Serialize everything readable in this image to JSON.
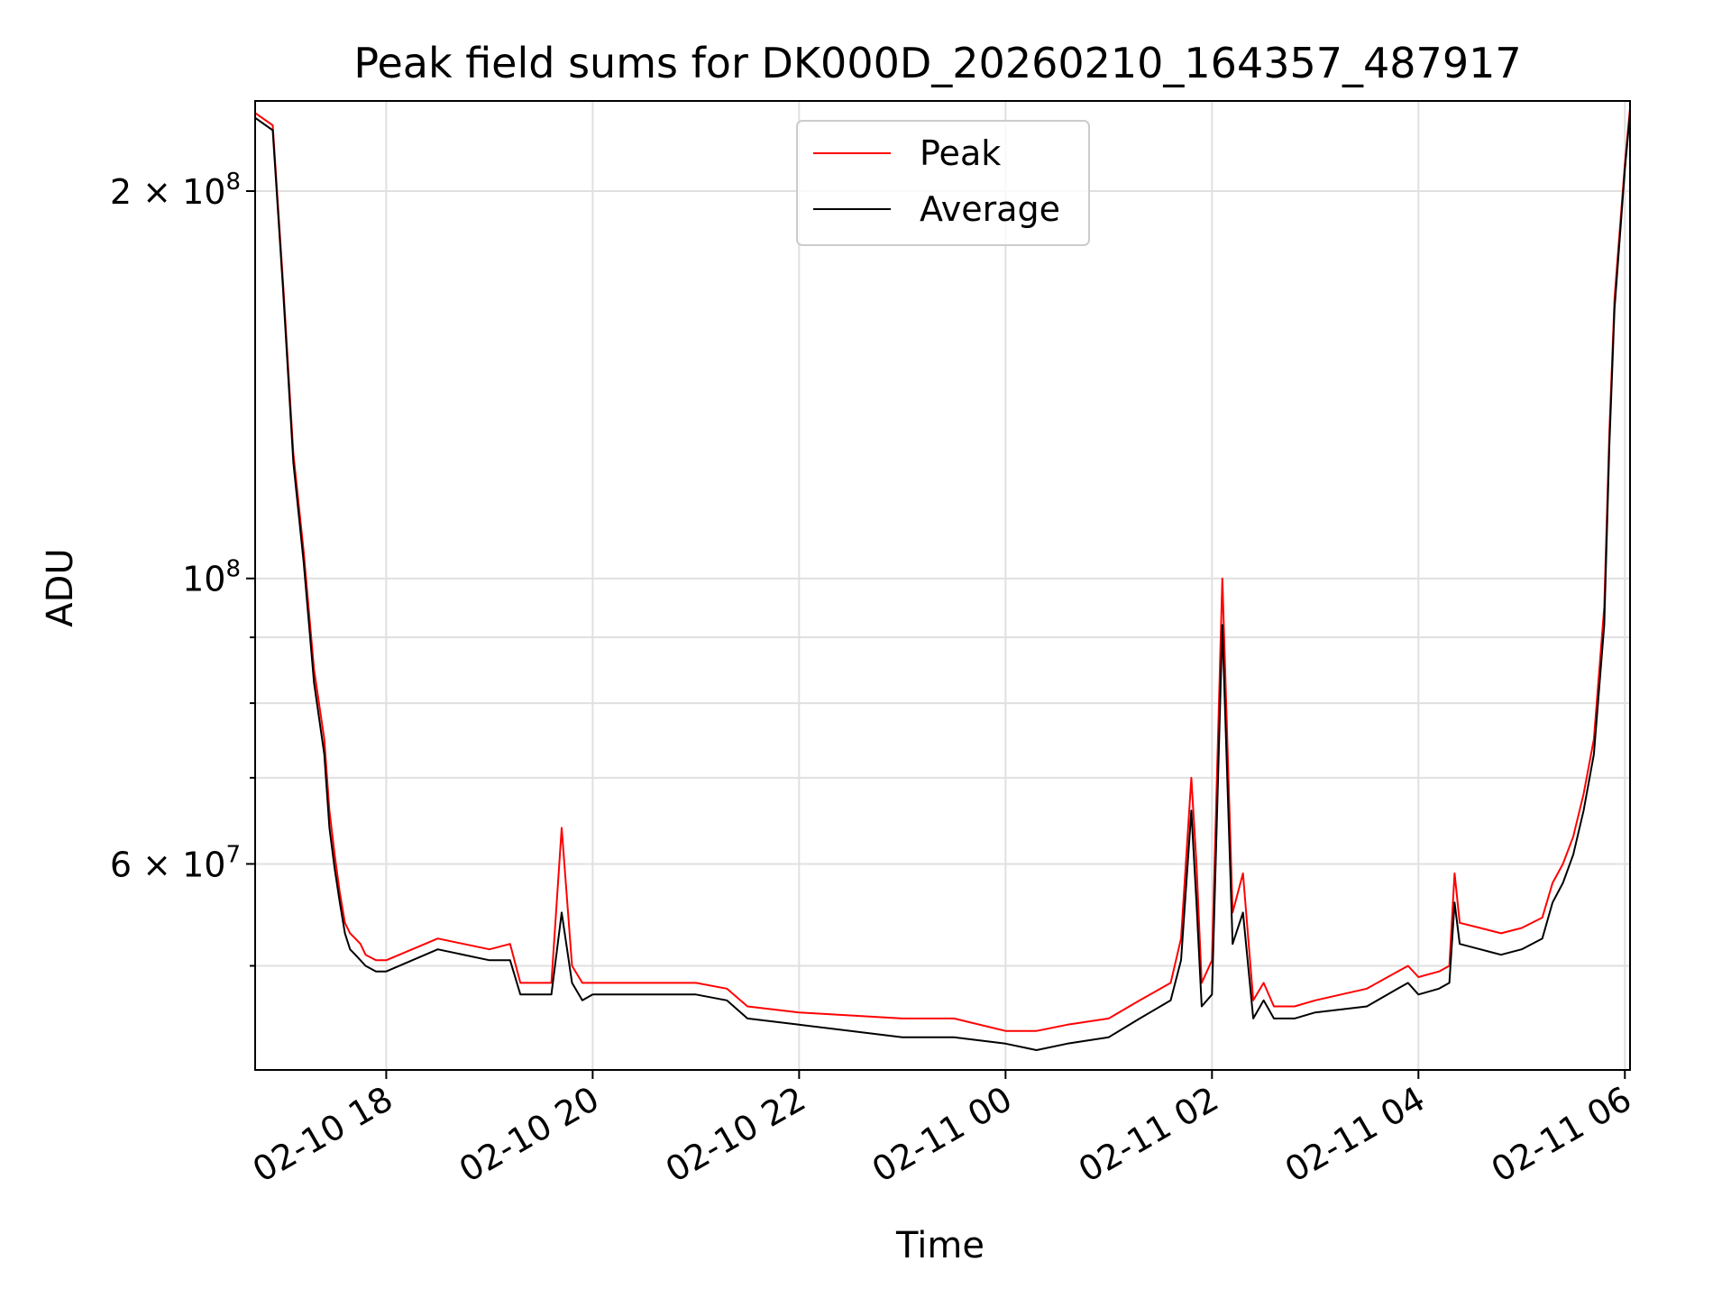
{
  "chart_data": {
    "type": "line",
    "title": "Peak field sums for DK000D_20260210_164357_487917",
    "xlabel": "Time",
    "ylabel": "ADU",
    "yscale": "log",
    "grid": true,
    "legend_position": "top-center",
    "xlim_hours": [
      16.73,
      30.05
    ],
    "ylim": [
      41500000,
      235000000
    ],
    "x_unit_note": "hours since 2026-02-10 00:00",
    "x_ticks": [
      {
        "value": 18,
        "label": "02-10 18"
      },
      {
        "value": 20,
        "label": "02-10 20"
      },
      {
        "value": 22,
        "label": "02-10 22"
      },
      {
        "value": 24,
        "label": "02-11 00"
      },
      {
        "value": 26,
        "label": "02-11 02"
      },
      {
        "value": 28,
        "label": "02-11 04"
      },
      {
        "value": 30,
        "label": "02-11 06"
      }
    ],
    "y_major_ticks": [
      {
        "value": 60000000,
        "base": "6 × 10",
        "exp": "7"
      },
      {
        "value": 100000000,
        "base": "10",
        "exp": "8"
      },
      {
        "value": 200000000,
        "base": "2 × 10",
        "exp": "8"
      }
    ],
    "y_minor_ticks": [
      50000000,
      70000000,
      80000000,
      90000000
    ],
    "series": [
      {
        "name": "Peak",
        "color": "#ff0000",
        "x": [
          16.73,
          16.9,
          17.0,
          17.1,
          17.2,
          17.3,
          17.4,
          17.45,
          17.5,
          17.55,
          17.6,
          17.65,
          17.7,
          17.75,
          17.8,
          17.9,
          18.0,
          18.5,
          19.0,
          19.2,
          19.3,
          19.6,
          19.7,
          19.8,
          19.9,
          20.0,
          20.5,
          21.0,
          21.3,
          21.5,
          22.0,
          23.0,
          23.5,
          24.0,
          24.3,
          24.6,
          25.0,
          25.3,
          25.6,
          25.7,
          25.8,
          25.85,
          25.9,
          26.0,
          26.1,
          26.2,
          26.3,
          26.4,
          26.5,
          26.6,
          26.8,
          27.0,
          27.5,
          27.8,
          27.9,
          28.0,
          28.2,
          28.3,
          28.35,
          28.4,
          28.6,
          28.8,
          29.0,
          29.2,
          29.3,
          29.4,
          29.5,
          29.6,
          29.7,
          29.8,
          29.85,
          29.9,
          30.0,
          30.05
        ],
        "y": [
          230000000,
          225000000,
          170000000,
          125000000,
          105000000,
          85000000,
          75000000,
          66000000,
          61000000,
          57000000,
          54000000,
          53000000,
          52500000,
          52000000,
          51000000,
          50500000,
          50500000,
          52500000,
          51500000,
          52000000,
          48500000,
          48500000,
          64000000,
          50000000,
          48500000,
          48500000,
          48500000,
          48500000,
          48000000,
          46500000,
          46000000,
          45500000,
          45500000,
          44500000,
          44500000,
          45000000,
          45500000,
          47000000,
          48500000,
          52500000,
          70000000,
          60000000,
          48500000,
          50500000,
          100000000,
          55000000,
          59000000,
          47000000,
          48500000,
          46500000,
          46500000,
          47000000,
          48000000,
          49500000,
          50000000,
          49000000,
          49500000,
          50000000,
          59000000,
          54000000,
          53500000,
          53000000,
          53500000,
          54500000,
          58000000,
          60000000,
          63000000,
          68000000,
          75000000,
          95000000,
          130000000,
          165000000,
          210000000,
          232000000
        ]
      },
      {
        "name": "Average",
        "color": "#000000",
        "x": [
          16.73,
          16.9,
          17.0,
          17.1,
          17.2,
          17.3,
          17.4,
          17.45,
          17.5,
          17.55,
          17.6,
          17.65,
          17.7,
          17.75,
          17.8,
          17.9,
          18.0,
          18.5,
          19.0,
          19.2,
          19.3,
          19.6,
          19.7,
          19.8,
          19.9,
          20.0,
          20.5,
          21.0,
          21.3,
          21.5,
          22.0,
          23.0,
          23.5,
          24.0,
          24.3,
          24.6,
          25.0,
          25.3,
          25.6,
          25.7,
          25.8,
          25.85,
          25.9,
          26.0,
          26.1,
          26.2,
          26.3,
          26.4,
          26.5,
          26.6,
          26.8,
          27.0,
          27.5,
          27.8,
          27.9,
          28.0,
          28.2,
          28.3,
          28.35,
          28.4,
          28.6,
          28.8,
          29.0,
          29.2,
          29.3,
          29.4,
          29.5,
          29.6,
          29.7,
          29.8,
          29.85,
          29.9,
          30.0,
          30.05
        ],
        "y": [
          228000000,
          223000000,
          168000000,
          123000000,
          103000000,
          83000000,
          73000000,
          64000000,
          59500000,
          56000000,
          53000000,
          51500000,
          51000000,
          50500000,
          50000000,
          49500000,
          49500000,
          51500000,
          50500000,
          50500000,
          47500000,
          47500000,
          55000000,
          48500000,
          47000000,
          47500000,
          47500000,
          47500000,
          47000000,
          45500000,
          45000000,
          44000000,
          44000000,
          43500000,
          43000000,
          43500000,
          44000000,
          45500000,
          47000000,
          50500000,
          66000000,
          56000000,
          46500000,
          47500000,
          92000000,
          52000000,
          55000000,
          45500000,
          47000000,
          45500000,
          45500000,
          46000000,
          46500000,
          48000000,
          48500000,
          47500000,
          48000000,
          48500000,
          56000000,
          52000000,
          51500000,
          51000000,
          51500000,
          52500000,
          56000000,
          58000000,
          61000000,
          66000000,
          73000000,
          92000000,
          127000000,
          162000000,
          208000000,
          230000000
        ]
      }
    ]
  }
}
